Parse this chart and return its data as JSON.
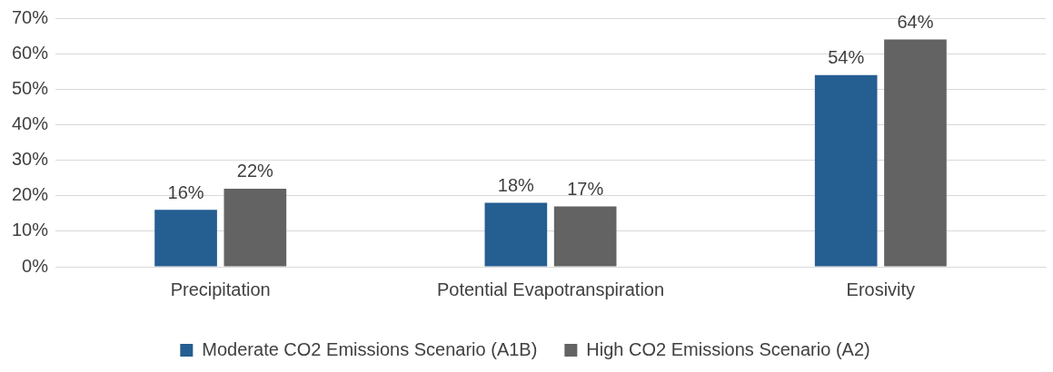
{
  "chart_data": {
    "type": "bar",
    "categories": [
      "Precipitation",
      "Potential Evapotranspiration",
      "Erosivity"
    ],
    "series": [
      {
        "name": "Moderate CO2 Emissions Scenario (A1B)",
        "color": "#255e91",
        "values": [
          16,
          18,
          54
        ],
        "value_labels": [
          "16%",
          "18%",
          "54%"
        ]
      },
      {
        "name": "High CO2 Emissions Scenario (A2)",
        "color": "#636363",
        "values": [
          22,
          17,
          64
        ],
        "value_labels": [
          "22%",
          "17%",
          "64%"
        ]
      }
    ],
    "ylim": [
      0,
      70
    ],
    "yticks": [
      {
        "value": 0,
        "label": "0%"
      },
      {
        "value": 10,
        "label": "10%"
      },
      {
        "value": 20,
        "label": "20%"
      },
      {
        "value": 30,
        "label": "30%"
      },
      {
        "value": 40,
        "label": "40%"
      },
      {
        "value": 50,
        "label": "50%"
      },
      {
        "value": 60,
        "label": "60%"
      },
      {
        "value": 70,
        "label": "70%"
      }
    ],
    "grid": "y",
    "legend": "bottom"
  }
}
